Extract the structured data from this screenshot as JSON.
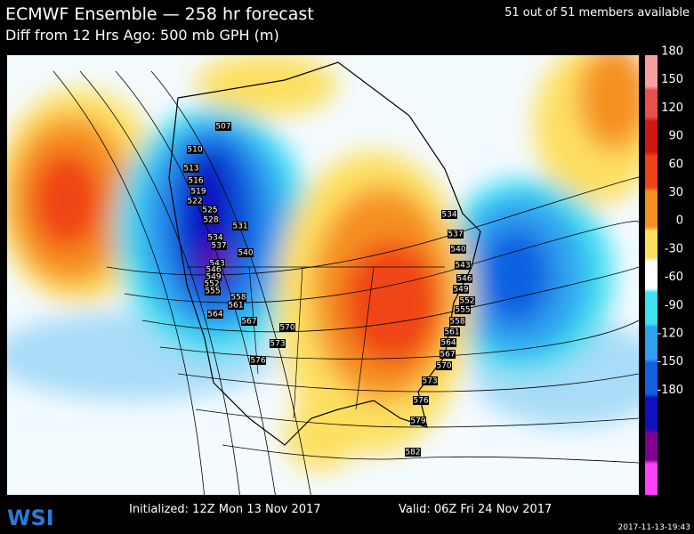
{
  "header": {
    "title": "ECMWF Ensemble — 258 hr forecast",
    "subtitle": "Diff from 12 Hrs Ago: 500 mb GPH (m)",
    "members": "51 out of 51 members available"
  },
  "colorbar": {
    "labels": [
      180,
      150,
      120,
      90,
      60,
      30,
      0,
      -30,
      -60,
      -90,
      -120,
      -150,
      -180
    ]
  },
  "contour_labels": [
    507,
    510,
    513,
    516,
    519,
    522,
    525,
    528,
    531,
    534,
    537,
    540,
    543,
    546,
    549,
    552,
    555,
    558,
    561,
    564,
    567,
    570,
    573,
    576,
    579,
    582,
    534,
    537,
    540,
    543,
    546,
    549,
    552,
    555,
    558,
    561,
    564,
    567,
    570,
    573,
    576
  ],
  "footer": {
    "logo": "WSI",
    "initialized": "Initialized: 12Z Mon 13 Nov 2017",
    "valid": "Valid: 06Z Fri 24 Nov 2017",
    "timestamp": "2017-11-13-19:43"
  }
}
